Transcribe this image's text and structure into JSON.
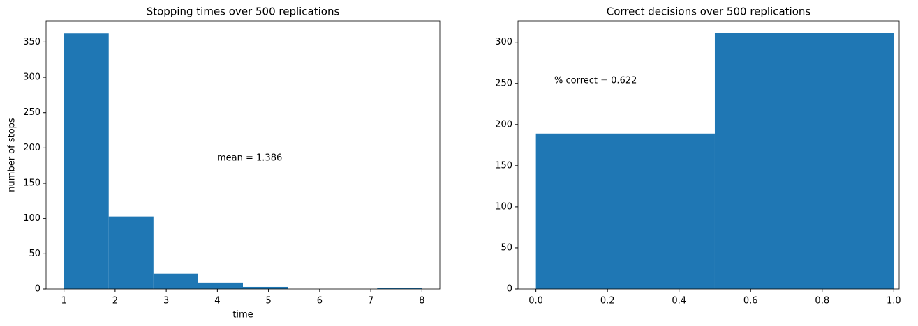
{
  "chart_data": [
    {
      "type": "histogram",
      "title": "Stopping times over 500 replications",
      "xlabel": "time",
      "ylabel": "number of stops",
      "annotation": "mean = 1.386",
      "bins": [
        1,
        1.875,
        2.75,
        3.625,
        4.5,
        5.375,
        6.25,
        7.125,
        8
      ],
      "values": [
        362,
        103,
        22,
        9,
        3,
        0,
        0,
        1
      ],
      "color": "#1f77b4",
      "xlim": [
        0.65,
        8.35
      ],
      "xticks": [
        1,
        2,
        3,
        4,
        5,
        6,
        7,
        8
      ],
      "ylim": [
        0,
        380
      ],
      "yticks": [
        0,
        50,
        100,
        150,
        200,
        250,
        300,
        350
      ]
    },
    {
      "type": "histogram",
      "title": "Correct decisions over 500 replications",
      "annotation": "% correct = 0.622",
      "bins": [
        0,
        0.5,
        1
      ],
      "values": [
        189,
        311
      ],
      "color": "#1f77b4",
      "xlim": [
        -0.05,
        1.015
      ],
      "xticks": [
        {
          "value": 0,
          "label": "0.0"
        },
        0.2,
        0.4,
        0.6,
        0.8,
        {
          "value": 1,
          "label": "1.0"
        }
      ],
      "ylim": [
        0,
        326
      ],
      "yticks": [
        0,
        50,
        100,
        150,
        200,
        250,
        300
      ]
    }
  ]
}
